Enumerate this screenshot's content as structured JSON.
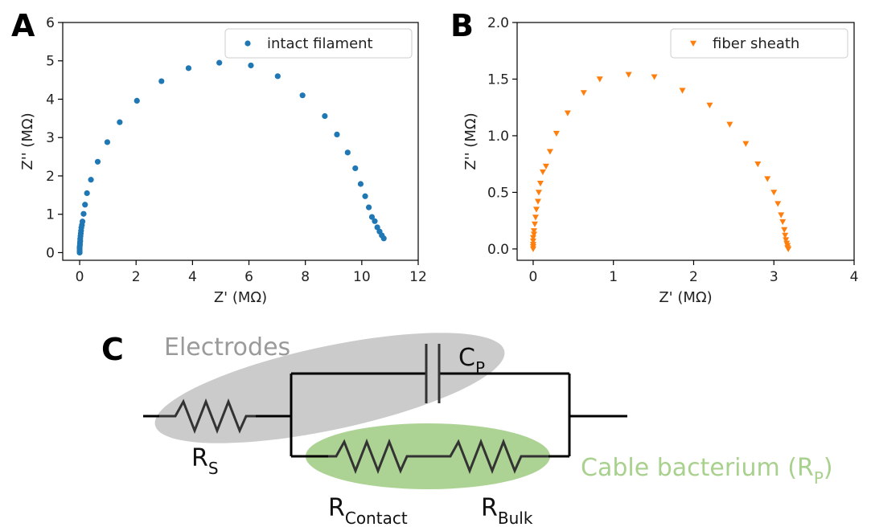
{
  "panels": {
    "a_label": "A",
    "b_label": "B",
    "c_label": "C"
  },
  "chart_data": [
    {
      "type": "scatter",
      "panel": "A",
      "title": "",
      "xlabel": "Z' (MΩ)",
      "ylabel": "Z'' (MΩ)",
      "xlim": [
        -0.6,
        12
      ],
      "ylim": [
        -0.2,
        6
      ],
      "xticks": [
        0,
        2,
        4,
        6,
        8,
        10,
        12
      ],
      "yticks": [
        0,
        1,
        2,
        3,
        4,
        5,
        6
      ],
      "grid": false,
      "legend": "top-right",
      "series": [
        {
          "name": "intact filament",
          "color": "#1f77b4",
          "marker": "circle",
          "x": [
            0.0,
            0.0,
            0.0,
            0.0,
            0.01,
            0.01,
            0.02,
            0.02,
            0.03,
            0.04,
            0.05,
            0.06,
            0.08,
            0.1,
            0.14,
            0.19,
            0.26,
            0.4,
            0.64,
            0.98,
            1.42,
            2.03,
            2.9,
            3.86,
            4.95,
            6.07,
            7.02,
            7.9,
            8.69,
            9.12,
            9.5,
            9.77,
            9.96,
            10.12,
            10.25,
            10.36,
            10.46,
            10.55,
            10.63,
            10.71,
            10.78
          ],
          "y": [
            0.0,
            0.05,
            0.1,
            0.15,
            0.2,
            0.25,
            0.3,
            0.36,
            0.43,
            0.5,
            0.57,
            0.65,
            0.72,
            0.81,
            1.01,
            1.25,
            1.55,
            1.9,
            2.37,
            2.88,
            3.4,
            3.96,
            4.47,
            4.81,
            4.95,
            4.88,
            4.6,
            4.1,
            3.56,
            3.08,
            2.61,
            2.2,
            1.79,
            1.47,
            1.18,
            0.93,
            0.82,
            0.66,
            0.55,
            0.45,
            0.37
          ]
        }
      ]
    },
    {
      "type": "scatter",
      "panel": "B",
      "title": "",
      "xlabel": "Z' (MΩ)",
      "ylabel": "Z'' (MΩ)",
      "xlim": [
        -0.2,
        4
      ],
      "ylim": [
        -0.1,
        2
      ],
      "xticks": [
        0,
        1,
        2,
        3,
        4
      ],
      "yticks": [
        0.0,
        0.5,
        1.0,
        1.5,
        2.0
      ],
      "grid": false,
      "legend": "top-right",
      "series": [
        {
          "name": "fiber sheath",
          "color": "#ff7f0e",
          "marker": "triangle-down",
          "x": [
            0.0,
            0.0,
            0.0,
            0.0,
            0.0,
            0.01,
            0.01,
            0.02,
            0.03,
            0.04,
            0.06,
            0.07,
            0.09,
            0.12,
            0.16,
            0.21,
            0.29,
            0.43,
            0.63,
            0.83,
            1.19,
            1.51,
            1.86,
            2.2,
            2.45,
            2.65,
            2.8,
            2.92,
            3.0,
            3.05,
            3.09,
            3.11,
            3.13,
            3.14,
            3.15,
            3.16,
            3.17,
            3.17,
            3.18
          ],
          "y": [
            0.0,
            0.02,
            0.04,
            0.07,
            0.1,
            0.13,
            0.16,
            0.22,
            0.28,
            0.35,
            0.42,
            0.5,
            0.58,
            0.68,
            0.73,
            0.86,
            1.02,
            1.2,
            1.38,
            1.5,
            1.54,
            1.52,
            1.4,
            1.27,
            1.1,
            0.93,
            0.75,
            0.62,
            0.5,
            0.4,
            0.3,
            0.24,
            0.17,
            0.12,
            0.08,
            0.05,
            0.03,
            0.01,
            0.0
          ]
        }
      ]
    }
  ],
  "circuit": {
    "electrodes_label": "Electrodes",
    "cp": {
      "main": "C",
      "sub": "P"
    },
    "rs": {
      "main": "R",
      "sub": "S"
    },
    "rcontact": {
      "main": "R",
      "sub": "Contact"
    },
    "rbulk": {
      "main": "R",
      "sub": "Bulk"
    },
    "cable": {
      "main": "Cable bacterium (R",
      "sub": "P",
      "close": ")"
    },
    "colors": {
      "electrodes_fill": "#c8c8c8",
      "cable_fill": "#a9d18e",
      "wire": "#000000",
      "resistor": "#333333"
    }
  }
}
